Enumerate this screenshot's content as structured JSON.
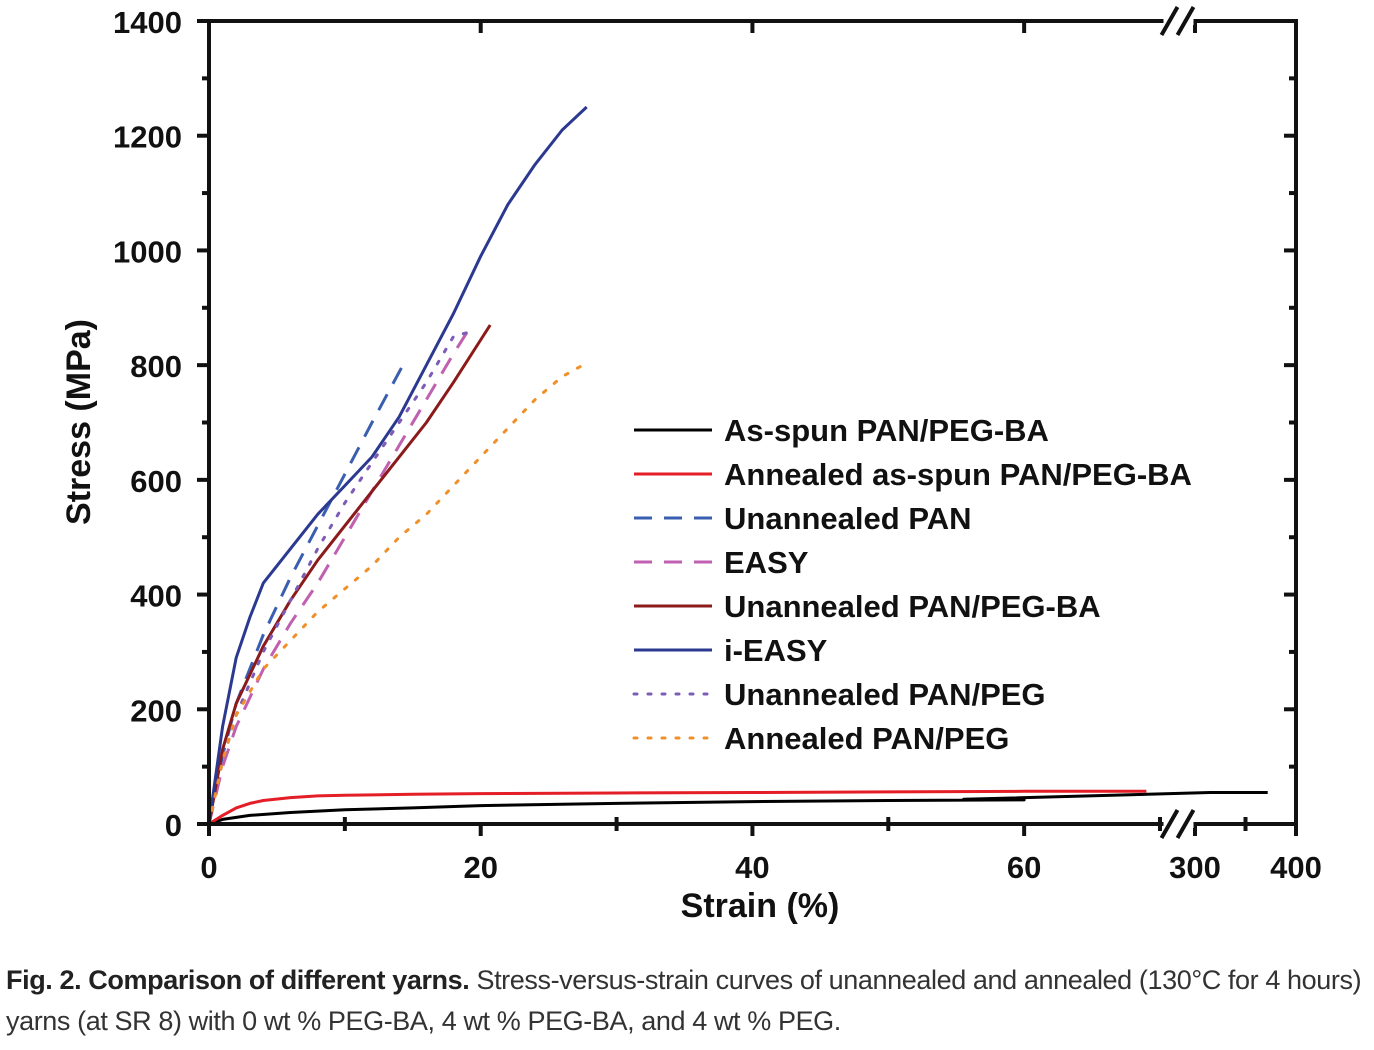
{
  "chart_data": {
    "type": "line",
    "xlabel": "Strain (%)",
    "ylabel": "Stress (MPa)",
    "x_axis_break": {
      "left_segment": [
        0,
        70
      ],
      "right_segment": [
        300,
        400
      ]
    },
    "xlim": [
      0,
      400
    ],
    "ylim": [
      0,
      1400
    ],
    "x_ticks": [
      {
        "value": 0,
        "label": "0"
      },
      {
        "value": 20,
        "label": "20"
      },
      {
        "value": 40,
        "label": "40"
      },
      {
        "value": 60,
        "label": "60"
      },
      {
        "value": 300,
        "label": "300"
      },
      {
        "value": 400,
        "label": "400"
      }
    ],
    "y_ticks": [
      {
        "value": 0,
        "label": "0"
      },
      {
        "value": 200,
        "label": "200"
      },
      {
        "value": 400,
        "label": "400"
      },
      {
        "value": 600,
        "label": "600"
      },
      {
        "value": 800,
        "label": "800"
      },
      {
        "value": 1000,
        "label": "1000"
      },
      {
        "value": 1200,
        "label": "1200"
      },
      {
        "value": 1400,
        "label": "1400"
      }
    ],
    "legend_position": "center-right",
    "series": [
      {
        "name": "As-spun PAN/PEG-BA",
        "color": "#000000",
        "style": "solid",
        "x": [
          0,
          1,
          3,
          6,
          10,
          15,
          20,
          30,
          40,
          50,
          60,
          71,
          315,
          372
        ],
        "y": [
          0,
          8,
          15,
          20,
          25,
          28,
          32,
          36,
          39,
          41,
          42,
          43,
          55,
          55
        ]
      },
      {
        "name": "Annealed as-spun PAN/PEG-BA",
        "color": "#e41e26",
        "style": "solid",
        "x": [
          0,
          1,
          2,
          3,
          4,
          6,
          8,
          10,
          15,
          20,
          30,
          40,
          50,
          60,
          69
        ],
        "y": [
          0,
          15,
          28,
          36,
          41,
          46,
          49,
          50,
          52,
          53,
          54,
          55,
          56,
          57,
          57
        ]
      },
      {
        "name": "Unannealed PAN",
        "color": "#3a5fb0",
        "style": "dashed",
        "x": [
          0,
          1,
          2,
          4,
          6,
          8,
          10,
          12,
          14.5
        ],
        "y": [
          0,
          120,
          210,
          330,
          430,
          520,
          610,
          700,
          810
        ]
      },
      {
        "name": "EASY",
        "color": "#c060b0",
        "style": "dashed",
        "x": [
          0,
          1,
          2,
          4,
          6,
          8,
          10,
          12,
          14,
          16,
          18,
          19.2
        ],
        "y": [
          0,
          100,
          170,
          270,
          350,
          420,
          500,
          580,
          660,
          740,
          820,
          865
        ]
      },
      {
        "name": "Unannealed PAN/PEG-BA",
        "color": "#8b1a1a",
        "style": "solid",
        "x": [
          0,
          1,
          2,
          4,
          6,
          8,
          10,
          12,
          14,
          16,
          18,
          20.7
        ],
        "y": [
          0,
          130,
          210,
          310,
          390,
          460,
          520,
          580,
          640,
          700,
          770,
          870
        ]
      },
      {
        "name": "i-EASY",
        "color": "#2b3990",
        "style": "solid",
        "x": [
          0,
          1,
          2,
          3,
          4,
          6,
          8,
          10,
          12,
          14,
          16,
          18,
          20,
          22,
          24,
          26,
          27.8
        ],
        "y": [
          0,
          170,
          290,
          360,
          420,
          480,
          540,
          590,
          640,
          710,
          800,
          890,
          990,
          1080,
          1150,
          1210,
          1250
        ]
      },
      {
        "name": "Unannealed PAN/PEG",
        "color": "#7d5cb8",
        "style": "dotted",
        "x": [
          0,
          1,
          2,
          4,
          6,
          8,
          10,
          12,
          14,
          16,
          18,
          19.5
        ],
        "y": [
          0,
          110,
          190,
          300,
          390,
          480,
          560,
          630,
          700,
          770,
          850,
          860
        ]
      },
      {
        "name": "Annealed PAN/PEG",
        "color": "#f0902a",
        "style": "dotted",
        "x": [
          0,
          1,
          2,
          4,
          6,
          8,
          10,
          12,
          14,
          16,
          18,
          20,
          22,
          24,
          26,
          27.9
        ],
        "y": [
          0,
          110,
          190,
          270,
          320,
          370,
          410,
          450,
          500,
          540,
          590,
          640,
          690,
          740,
          780,
          805
        ]
      }
    ]
  },
  "caption": {
    "lead": "Fig. 2. Comparison of different yarns.",
    "text": " Stress-versus-strain curves of unannealed and annealed (130°C for 4 hours) yarns (at SR 8) with 0 wt % PEG-BA, 4 wt % PEG-BA, and 4 wt % PEG."
  }
}
